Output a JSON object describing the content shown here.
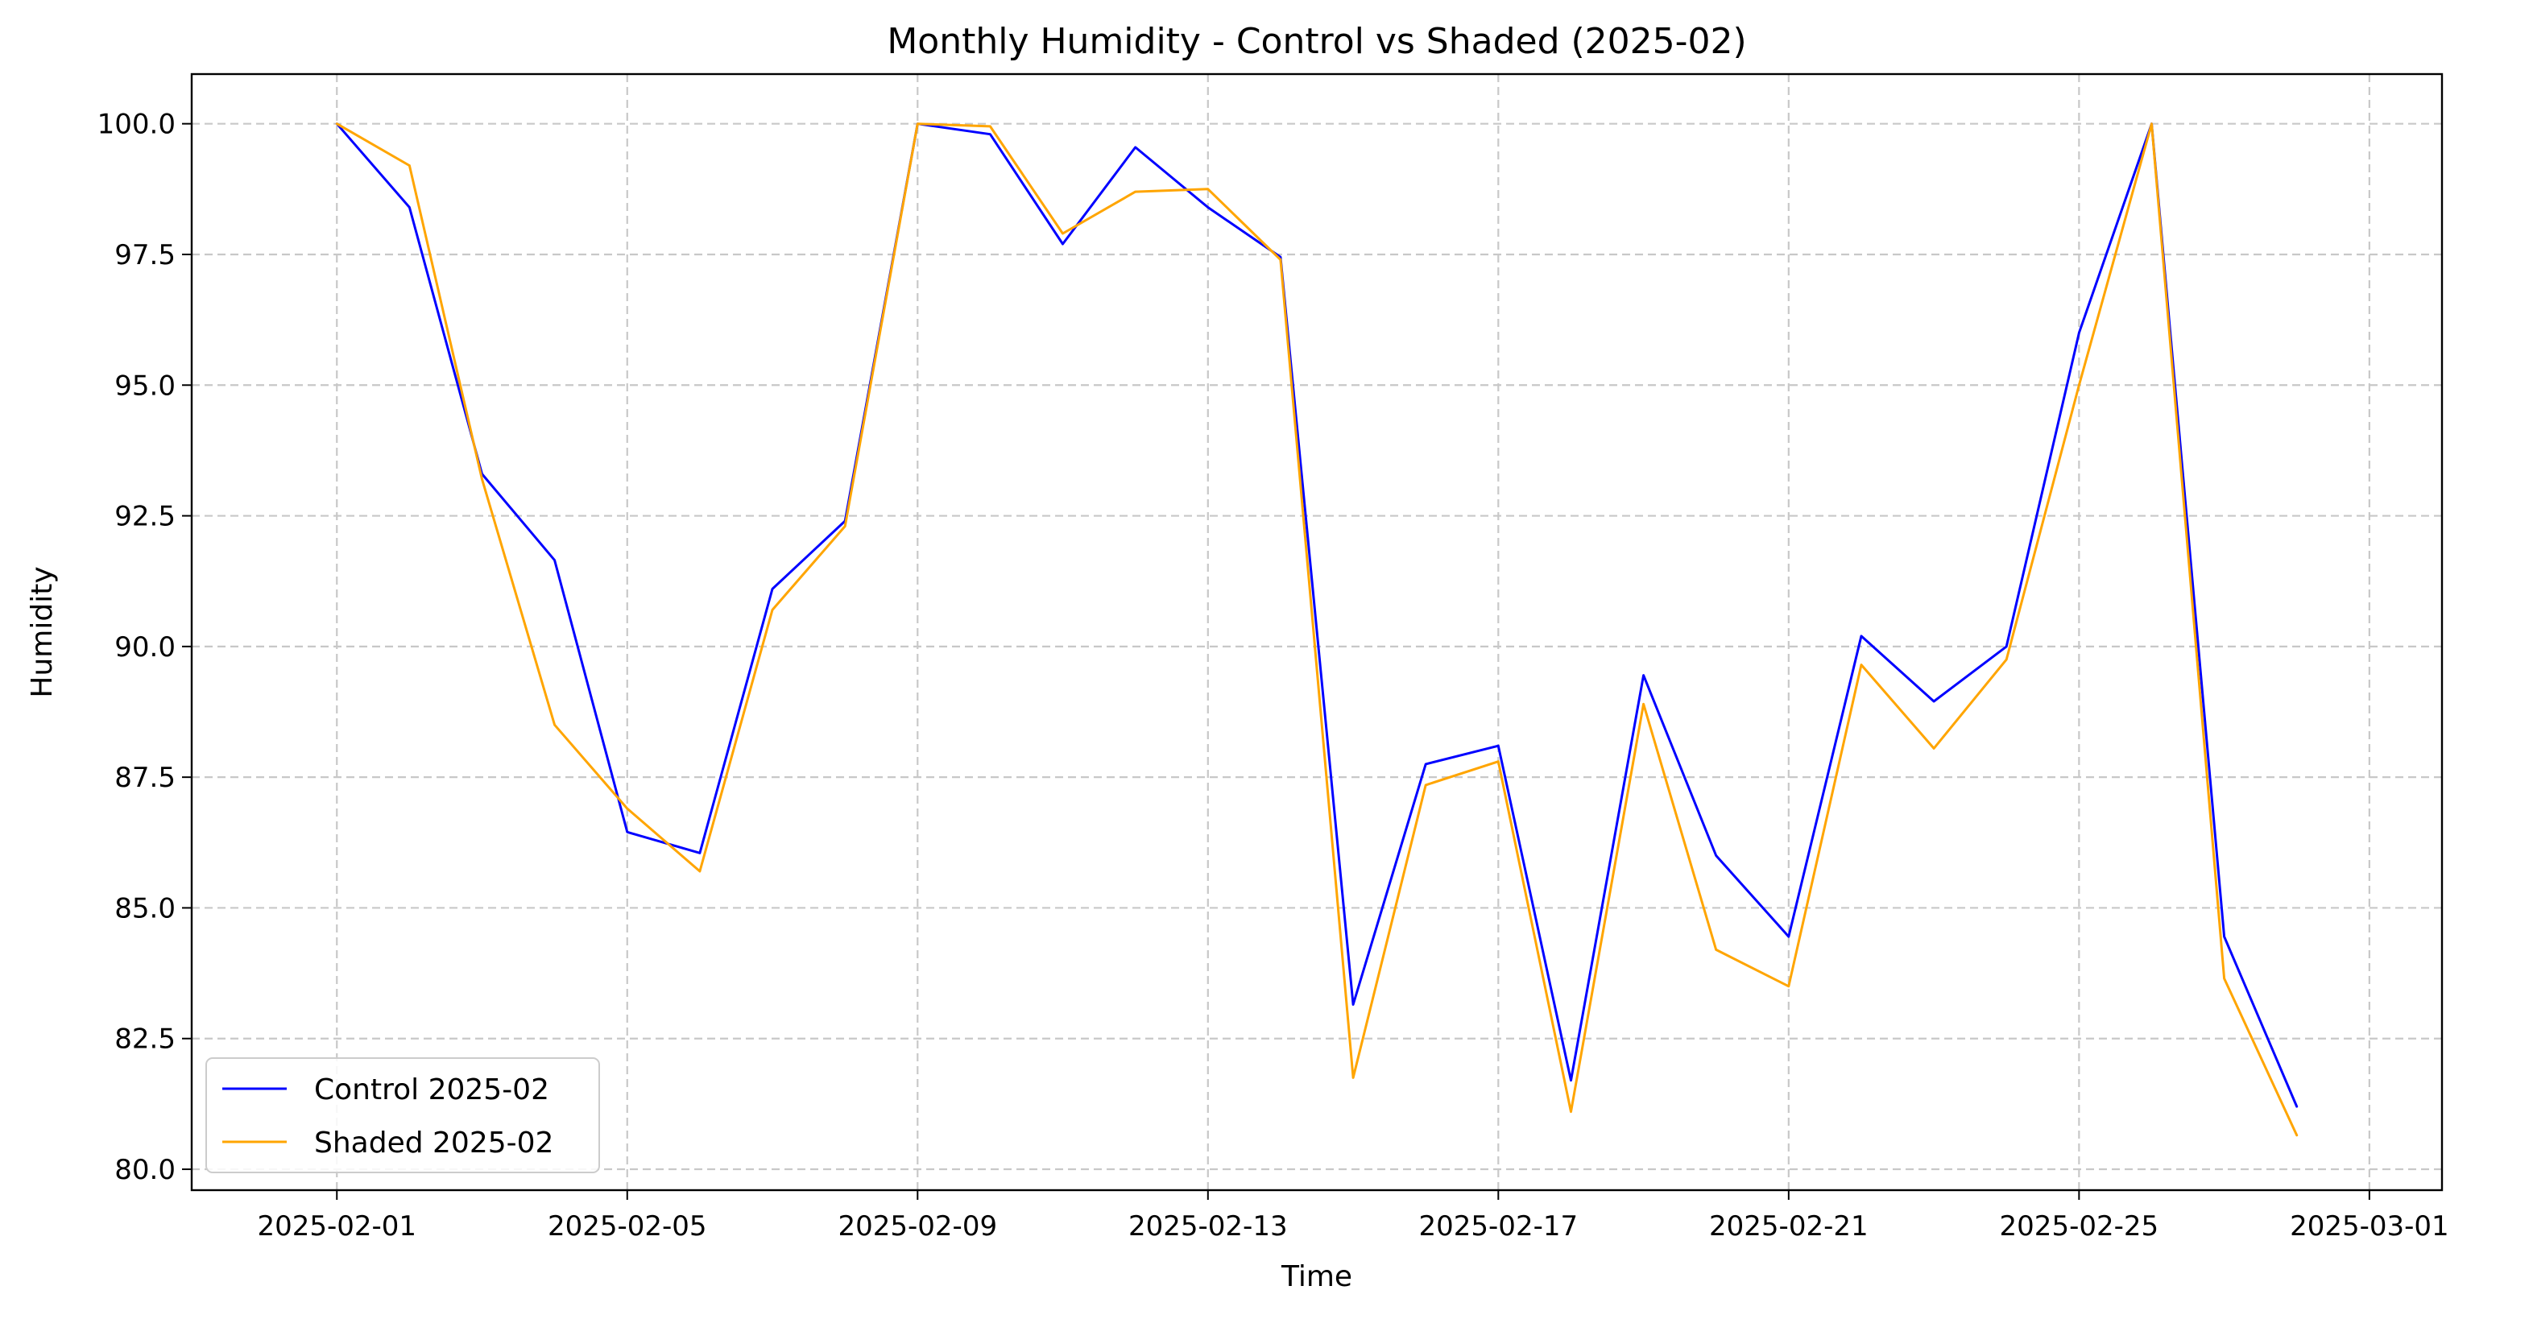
{
  "chart_data": {
    "type": "line",
    "title": "Monthly Humidity - Control vs Shaded (2025-02)",
    "xlabel": "Time",
    "ylabel": "Humidity",
    "x_type": "date",
    "xlim": [
      "2025-01-30",
      "2025-03-02"
    ],
    "ylim": [
      79.6,
      100.95
    ],
    "x_ticks": [
      "2025-02-01",
      "2025-02-05",
      "2025-02-09",
      "2025-02-13",
      "2025-02-17",
      "2025-02-21",
      "2025-02-25",
      "2025-03-01"
    ],
    "x_tick_labels": [
      "2025-02-01",
      "2025-02-05",
      "2025-02-09",
      "2025-02-13",
      "2025-02-17",
      "2025-02-21",
      "2025-02-25",
      "2025-03-01"
    ],
    "y_ticks": [
      80.0,
      82.5,
      85.0,
      87.5,
      90.0,
      92.5,
      95.0,
      97.5,
      100.0
    ],
    "y_tick_labels": [
      "80.0",
      "82.5",
      "85.0",
      "87.5",
      "90.0",
      "92.5",
      "95.0",
      "97.5",
      "100.0"
    ],
    "grid": true,
    "legend_position": "bottom-left",
    "x": [
      "2025-02-01",
      "2025-02-02",
      "2025-02-03",
      "2025-02-04",
      "2025-02-05",
      "2025-02-06",
      "2025-02-07",
      "2025-02-08",
      "2025-02-09",
      "2025-02-10",
      "2025-02-11",
      "2025-02-12",
      "2025-02-13",
      "2025-02-14",
      "2025-02-15",
      "2025-02-16",
      "2025-02-17",
      "2025-02-18",
      "2025-02-19",
      "2025-02-20",
      "2025-02-21",
      "2025-02-22",
      "2025-02-23",
      "2025-02-24",
      "2025-02-25",
      "2025-02-26",
      "2025-02-27",
      "2025-02-28"
    ],
    "series": [
      {
        "name": "Control 2025-02",
        "color": "#0000ff",
        "values": [
          100.0,
          98.4,
          93.3,
          91.65,
          86.45,
          86.05,
          91.1,
          92.4,
          100.0,
          99.8,
          97.7,
          99.55,
          98.4,
          97.45,
          83.15,
          87.75,
          88.1,
          81.7,
          89.45,
          86.0,
          84.45,
          90.2,
          88.95,
          90.0,
          96.0,
          100.0,
          84.45,
          81.2
        ]
      },
      {
        "name": "Shaded 2025-02",
        "color": "#ffa500",
        "values": [
          100.0,
          99.2,
          93.2,
          88.5,
          86.9,
          85.7,
          90.7,
          92.3,
          100.0,
          99.95,
          97.9,
          98.7,
          98.75,
          97.4,
          81.75,
          87.35,
          87.8,
          81.1,
          88.9,
          84.2,
          83.5,
          89.65,
          88.05,
          89.75,
          95.0,
          100.0,
          83.65,
          80.65
        ]
      }
    ]
  }
}
